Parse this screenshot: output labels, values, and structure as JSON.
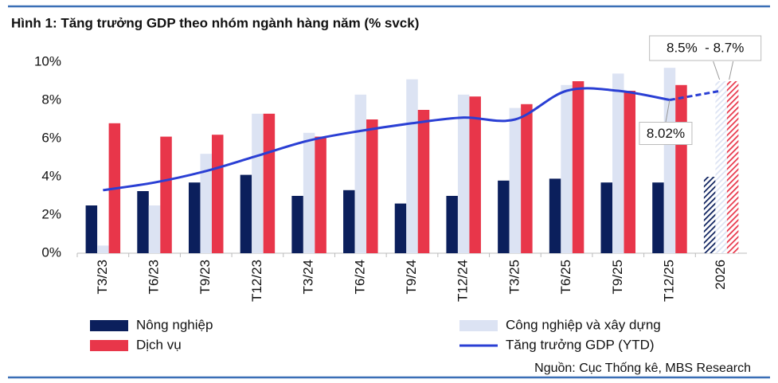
{
  "chart_data": {
    "type": "bar",
    "title": "Hình 1: Tăng trưởng GDP theo nhóm ngành hàng năm (% svck)",
    "source": "Nguồn: Cục Thống kê, MBS Research",
    "categories": [
      "T3/23",
      "T6/23",
      "T9/23",
      "T12/23",
      "T3/24",
      "T6/24",
      "T9/24",
      "T12/24",
      "T3/25",
      "T6/25",
      "T9/25",
      "T12/25",
      "2026"
    ],
    "forecast_count": 1,
    "series": [
      {
        "name": "Nông nghiệp",
        "type": "bar",
        "color": "#0b1f5c",
        "values": [
          2.5,
          3.25,
          3.7,
          4.1,
          3.0,
          3.3,
          2.6,
          3.0,
          3.8,
          3.9,
          3.7,
          3.7,
          4.0
        ]
      },
      {
        "name": "Công nghiệp và xây dựng",
        "type": "bar",
        "color": "#dce3f3",
        "values": [
          0.4,
          2.5,
          5.2,
          7.3,
          6.3,
          8.3,
          9.1,
          8.3,
          7.6,
          8.8,
          9.4,
          9.7,
          9.0
        ]
      },
      {
        "name": "Dịch vụ",
        "type": "bar",
        "color": "#e8364a",
        "values": [
          6.8,
          6.1,
          6.2,
          7.3,
          6.1,
          7.0,
          7.5,
          8.2,
          7.8,
          9.0,
          8.5,
          8.8,
          9.0
        ]
      },
      {
        "name": "Tăng trưởng GDP (YTD)",
        "type": "line",
        "color": "#2a3fd4",
        "values": [
          3.3,
          3.7,
          4.3,
          5.1,
          5.9,
          6.4,
          6.8,
          7.1,
          7.0,
          8.5,
          8.5,
          8.02,
          8.5
        ],
        "value_labels": [
          null,
          null,
          null,
          null,
          null,
          null,
          null,
          null,
          null,
          null,
          null,
          "8.02%",
          null
        ]
      }
    ],
    "annotations": [
      {
        "text": "8.5%  - 8.7%"
      }
    ],
    "ylim": [
      0,
      10
    ],
    "yticks": [
      {
        "value": 0,
        "label": "0%"
      },
      {
        "value": 2,
        "label": "2%"
      },
      {
        "value": 4,
        "label": "4%"
      },
      {
        "value": 6,
        "label": "6%"
      },
      {
        "value": 8,
        "label": "8%"
      },
      {
        "value": 10,
        "label": "10%"
      }
    ],
    "grid": false
  }
}
